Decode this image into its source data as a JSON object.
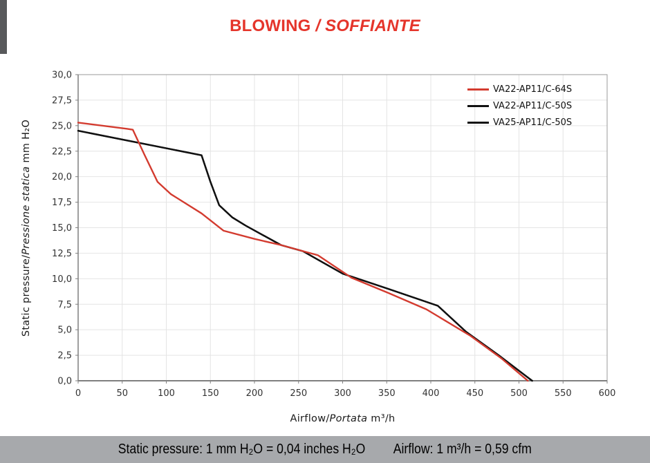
{
  "title": {
    "part1": "BLOWING ",
    "part2": "/ SOFFIANTE",
    "color": "#e5352b"
  },
  "chart_data": {
    "type": "line",
    "title": "BLOWING / SOFFIANTE",
    "grid": true,
    "legend_position": "top-right-inside",
    "style": {
      "grid_color": "#e4e4e4",
      "border_color": "#9a9a9a",
      "axis_color": "#7f7f7f",
      "plot_bg": "#ffffff"
    },
    "axes": {
      "x": {
        "title_parts": {
          "normal1": "Airflow/",
          "italic": "Portata",
          "normal2": "  m³/h"
        },
        "min": 0,
        "max": 600,
        "tick_step": 50,
        "tick_values": [
          0,
          50,
          100,
          150,
          200,
          250,
          300,
          350,
          400,
          450,
          500,
          550,
          600
        ],
        "tick_labels": [
          "0",
          "50",
          "100",
          "150",
          "200",
          "250",
          "300",
          "350",
          "400",
          "450",
          "500",
          "550",
          "600"
        ]
      },
      "y": {
        "title_parts": {
          "normal1": "Static pressure/",
          "italic": "Pressione statica",
          "normal2": " mm  H₂O"
        },
        "min": 0,
        "max": 30,
        "tick_step": 2.5,
        "tick_values": [
          0,
          2.5,
          5,
          7.5,
          10,
          12.5,
          15,
          17.5,
          20,
          22.5,
          25,
          27.5,
          30
        ],
        "tick_labels": [
          "0,0",
          "2,5",
          "5,0",
          "7,5",
          "10,0",
          "12,5",
          "15,0",
          "17,5",
          "20,0",
          "22,5",
          "25,0",
          "27,5",
          "30,0"
        ]
      }
    },
    "series": [
      {
        "name": "VA22-AP11/C-64S",
        "color": "#d33b2f",
        "points": [
          [
            0,
            25.3
          ],
          [
            55,
            24.7
          ],
          [
            62,
            24.6
          ],
          [
            75,
            22.2
          ],
          [
            90,
            19.5
          ],
          [
            105,
            18.3
          ],
          [
            140,
            16.4
          ],
          [
            165,
            14.7
          ],
          [
            200,
            13.9
          ],
          [
            230,
            13.3
          ],
          [
            272,
            12.3
          ],
          [
            310,
            10.1
          ],
          [
            352,
            8.6
          ],
          [
            395,
            7.0
          ],
          [
            445,
            4.4
          ],
          [
            480,
            2.2
          ],
          [
            510,
            0
          ]
        ]
      },
      {
        "name": "VA22-AP11/C-50S",
        "color": "#111111",
        "points": [
          [
            0,
            24.5
          ],
          [
            140,
            22.1
          ],
          [
            150,
            19.5
          ],
          [
            160,
            17.2
          ],
          [
            175,
            16.0
          ],
          [
            190,
            15.2
          ],
          [
            230,
            13.3
          ],
          [
            255,
            12.7
          ],
          [
            300,
            10.5
          ],
          [
            352,
            9.0
          ],
          [
            408,
            7.35
          ],
          [
            440,
            4.8
          ],
          [
            477,
            2.5
          ],
          [
            515,
            0
          ]
        ]
      },
      {
        "name": "VA25-AP11/C-50S",
        "color": "#111111",
        "points": [
          [
            0,
            24.5
          ],
          [
            140,
            22.1
          ],
          [
            150,
            19.5
          ],
          [
            160,
            17.2
          ],
          [
            175,
            16.0
          ],
          [
            190,
            15.2
          ],
          [
            230,
            13.3
          ],
          [
            255,
            12.7
          ],
          [
            300,
            10.5
          ],
          [
            352,
            9.0
          ],
          [
            408,
            7.35
          ],
          [
            440,
            4.8
          ],
          [
            477,
            2.5
          ],
          [
            515,
            0
          ]
        ]
      }
    ]
  },
  "footer": {
    "pressure_note": "Static pressure: 1 mm H₂O = 0,04 inches H₂O",
    "airflow_note": "Airflow: 1 m³/h = 0,59 cfm",
    "bg_color": "#a7a9ac"
  },
  "decor": {
    "edge_bar_color": "#58595b"
  }
}
